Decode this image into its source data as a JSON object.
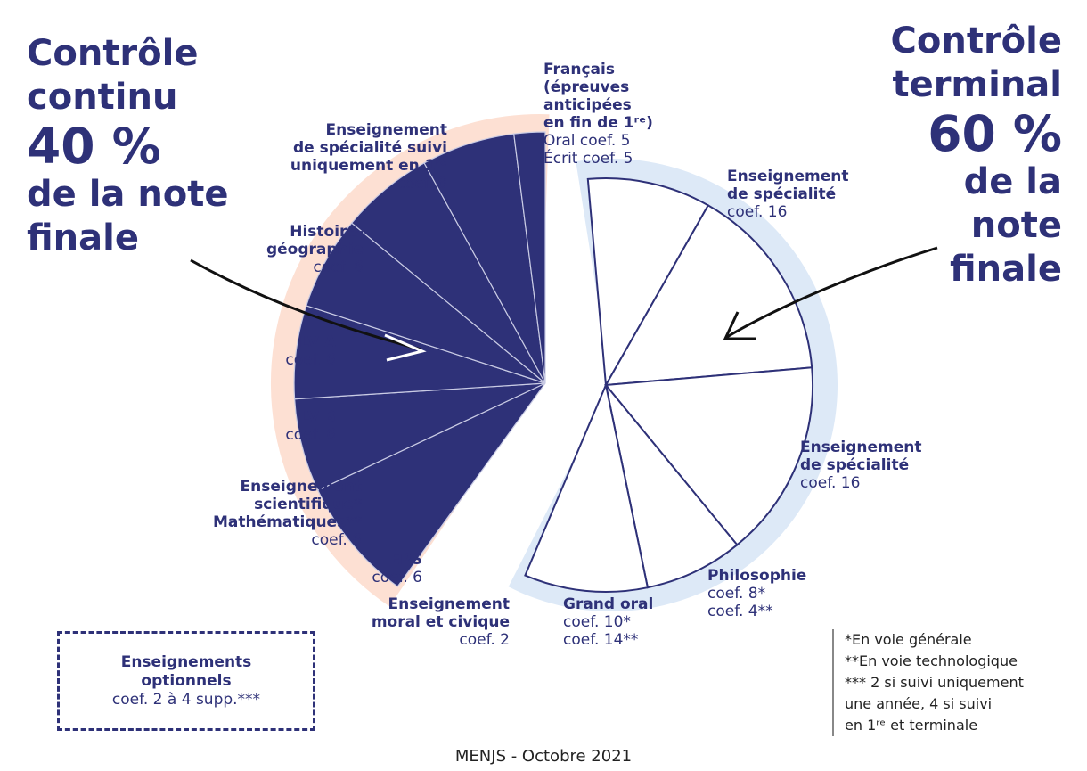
{
  "left_header": {
    "line1": "Contrôle",
    "line2": "continu",
    "percent": "40 %",
    "line3": "de la note",
    "line4": "finale"
  },
  "right_header": {
    "line1": "Contrôle",
    "line2": "terminal",
    "percent": "60 %",
    "line3": "de la",
    "line4": "note",
    "line5": "finale"
  },
  "colors": {
    "navy": "#2e3178",
    "glow_left": "#fde0d3",
    "glow_right": "#dde9f7",
    "white": "#ffffff"
  },
  "labels": {
    "spe_1re": {
      "name": "Enseignement\nde spécialité suivi\nuniquement en 1ʳᵉ",
      "coef": "coef. 8"
    },
    "histgeo": {
      "name": "Histoire-\ngéographie",
      "coef": "coef. 6"
    },
    "lva": {
      "name": "LV A",
      "coef": "coef. 6"
    },
    "lvb": {
      "name": "LV B",
      "coef": "coef. 6"
    },
    "ens_sci": {
      "name": "Enseignement\nscientifique*\nMathématiques**",
      "coef": "coef. 6"
    },
    "eps": {
      "name": "EPS",
      "coef": "coef. 6"
    },
    "emc": {
      "name": "Enseignement\nmoral et civique",
      "coef": "coef. 2"
    },
    "francais": {
      "name": "Français\n(épreuves\nanticipées\nen fin de 1ʳᵉ)",
      "coef": "Oral coef. 5\nÉcrit coef. 5"
    },
    "spe1": {
      "name": "Enseignement\nde spécialité",
      "coef": "coef. 16"
    },
    "spe2": {
      "name": "Enseignement\nde spécialité",
      "coef": "coef. 16"
    },
    "philo": {
      "name": "Philosophie",
      "coef": "coef. 8*\ncoef. 4**"
    },
    "grandoral": {
      "name": "Grand oral",
      "coef": "coef. 10*\ncoef. 14**"
    }
  },
  "optional_box": {
    "title": "Enseignements\noptionnels",
    "coef": "coef. 2 à 4 supp.***"
  },
  "notes": {
    "n1": "*En voie générale",
    "n2": "**En voie technologique",
    "n3": "*** 2 si suivi uniquement\nune année, 4 si suivi\nen 1ʳᵉ et terminale"
  },
  "source": "MENJS - Octobre 2021",
  "chart_data": {
    "type": "pie",
    "groups": [
      {
        "name": "Contrôle continu",
        "share": "40 %",
        "slices": [
          {
            "label": "Enseignement de spécialité suivi uniquement en 1ʳᵉ",
            "value": 8
          },
          {
            "label": "Histoire-géographie",
            "value": 6
          },
          {
            "label": "LV A",
            "value": 6
          },
          {
            "label": "LV B",
            "value": 6
          },
          {
            "label": "Enseignement scientifique* / Mathématiques**",
            "value": 6
          },
          {
            "label": "EPS",
            "value": 6
          },
          {
            "label": "Enseignement moral et civique",
            "value": 2
          }
        ]
      },
      {
        "name": "Contrôle terminal",
        "share": "60 %",
        "slices": [
          {
            "label": "Français (épreuves anticipées en fin de 1ʳᵉ)",
            "value": 10
          },
          {
            "label": "Enseignement de spécialité",
            "value": 16
          },
          {
            "label": "Enseignement de spécialité",
            "value": 16
          },
          {
            "label": "Philosophie",
            "value": 8
          },
          {
            "label": "Grand oral",
            "value": 10
          }
        ]
      }
    ]
  }
}
